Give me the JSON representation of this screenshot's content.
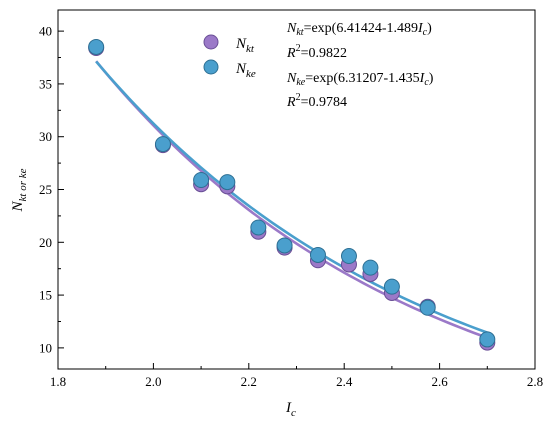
{
  "chart_data": {
    "type": "scatter",
    "xlabel": {
      "main": "I",
      "sub": "c"
    },
    "ylabel": {
      "main": "N",
      "sub": "kt or ke"
    },
    "xlim": [
      1.8,
      2.8
    ],
    "ylim": [
      8,
      42
    ],
    "x_ticks": [
      1.8,
      2.0,
      2.2,
      2.4,
      2.6,
      2.8
    ],
    "x_tick_labels": [
      "1.8",
      "2.0",
      "2.2",
      "2.4",
      "2.6",
      "2.8"
    ],
    "y_ticks": [
      10,
      15,
      20,
      25,
      30,
      35,
      40
    ],
    "y_tick_labels": [
      "10",
      "15",
      "20",
      "25",
      "30",
      "35",
      "40"
    ],
    "legend_position": "top-center",
    "series": [
      {
        "name": {
          "main": "N",
          "sub": "kt"
        },
        "color": "#9b79c8",
        "fit": {
          "a": 6.41424,
          "b": 1.489
        },
        "x": [
          1.88,
          2.02,
          2.1,
          2.155,
          2.22,
          2.275,
          2.345,
          2.41,
          2.455,
          2.5,
          2.575,
          2.7
        ],
        "y": [
          38.4,
          29.2,
          25.5,
          25.3,
          21.0,
          19.5,
          18.3,
          17.9,
          17.0,
          15.2,
          13.9,
          10.5
        ]
      },
      {
        "name": {
          "main": "N",
          "sub": "ke"
        },
        "color": "#4a9fcd",
        "fit": {
          "a": 6.31207,
          "b": 1.435
        },
        "x": [
          1.88,
          2.02,
          2.1,
          2.155,
          2.22,
          2.275,
          2.345,
          2.41,
          2.455,
          2.5,
          2.575,
          2.7
        ],
        "y": [
          38.5,
          29.3,
          25.9,
          25.7,
          21.4,
          19.7,
          18.8,
          18.7,
          17.6,
          15.8,
          13.8,
          10.8
        ]
      }
    ],
    "annotations": [
      {
        "lhs_main": "N",
        "lhs_sub": "kt",
        "rhs_pre": "=exp(6.41424-1.489",
        "rhs_var": "I",
        "rhs_var_sub": "c",
        "rhs_post": ")"
      },
      {
        "r2_main": "R",
        "r2_sup": "2",
        "r2_value": "=0.9822"
      },
      {
        "lhs_main": "N",
        "lhs_sub": "ke",
        "rhs_pre": "=exp(6.31207-1.435",
        "rhs_var": "I",
        "rhs_var_sub": "c",
        "rhs_post": ")"
      },
      {
        "r2_main": "R",
        "r2_sup": "2",
        "r2_value": "=0.9784"
      }
    ]
  }
}
